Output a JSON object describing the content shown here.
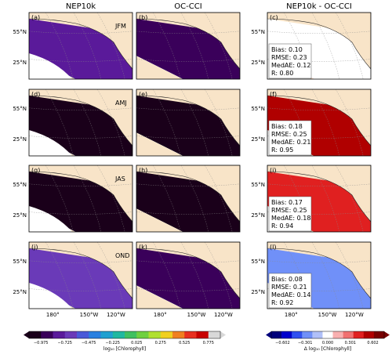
{
  "column_titles": [
    "NEP10k",
    "OC-CCI",
    "NEP10k - OC-CCI"
  ],
  "colors": {
    "land": "#f8e4c8",
    "ocean_grid": "#8a8a8a",
    "seq_scale": [
      "#1a001a",
      "#3a005a",
      "#5a1a9a",
      "#6a3ab8",
      "#4a5ad8",
      "#2a80e0",
      "#20a0d0",
      "#20b8a0",
      "#40c060",
      "#70d040",
      "#b0e030",
      "#f0d020",
      "#f08020",
      "#e83020",
      "#c80000",
      "#d8d8d8"
    ],
    "div_scale": [
      "#00007a",
      "#0000cc",
      "#3050f0",
      "#7090f8",
      "#b0c0f8",
      "#ffffff",
      "#f8b0b0",
      "#f07070",
      "#e02020",
      "#b00000",
      "#780000"
    ]
  },
  "chart_data": {
    "type": "heatmap",
    "description_rows": [
      "JFM",
      "AMJ",
      "JAS",
      "OND"
    ],
    "panel_letters": [
      "(a)",
      "(b)",
      "(c)",
      "(d)",
      "(e)",
      "(f)",
      "(g)",
      "(h)",
      "(i)",
      "(j)",
      "(k)",
      "(l)"
    ],
    "y_ticks": [
      "55°N",
      "25°N"
    ],
    "x_ticks": [
      "180°",
      "150°W",
      "120°W"
    ],
    "stats": [
      {
        "bias": "Bias: 0.10",
        "rmse": "RMSE: 0.23",
        "medae": "MedAE: 0.12",
        "r": "R: 0.80"
      },
      {
        "bias": "Bias: 0.18",
        "rmse": "RMSE: 0.25",
        "medae": "MedAE: 0.21",
        "r": "R: 0.95"
      },
      {
        "bias": "Bias: 0.17",
        "rmse": "RMSE: 0.25",
        "medae": "MedAE: 0.18",
        "r": "R: 0.94"
      },
      {
        "bias": "Bias: 0.08",
        "rmse": "RMSE: 0.21",
        "medae": "MedAE: 0.14",
        "r": "R: 0.92"
      }
    ],
    "colorbar_left": {
      "label": "log₁₀ [Chlorophyll]",
      "ticks": [
        "−0.975",
        "−0.725",
        "−0.475",
        "−0.225",
        "0.025",
        "0.275",
        "0.525",
        "0.775"
      ],
      "range": [
        -1.1,
        0.9
      ]
    },
    "colorbar_right": {
      "label": "Δ log₁₀ [Chlorophyll]",
      "ticks": [
        "−0.602",
        "−0.301",
        "0.000",
        "0.301",
        "0.602"
      ],
      "range": [
        -0.602,
        0.602
      ]
    }
  }
}
